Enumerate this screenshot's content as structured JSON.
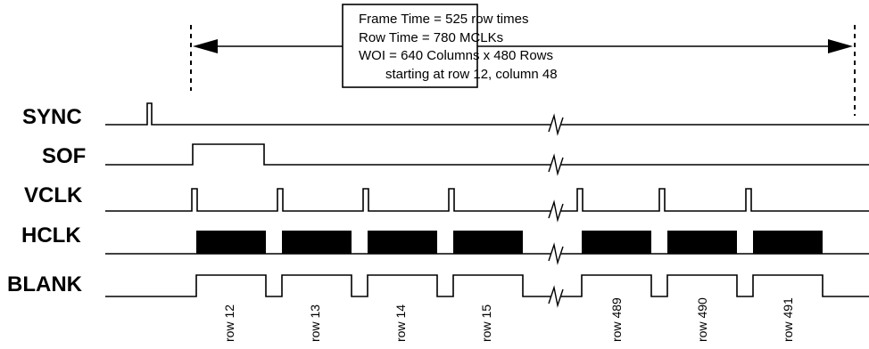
{
  "annotation": {
    "lines": [
      "Frame Time = 525 row times",
      "Row Time = 780 MCLKs",
      "WOI = 640 Columns x 480 Rows",
      "starting at row 12, column 48"
    ]
  },
  "signals": {
    "sync": "SYNC",
    "sof": "SOF",
    "vclk": "VCLK",
    "hclk": "HCLK",
    "blank": "BLANK"
  },
  "rows": [
    "row 12",
    "row 13",
    "row 14",
    "row 15",
    "row 489",
    "row 490",
    "row 491"
  ]
}
